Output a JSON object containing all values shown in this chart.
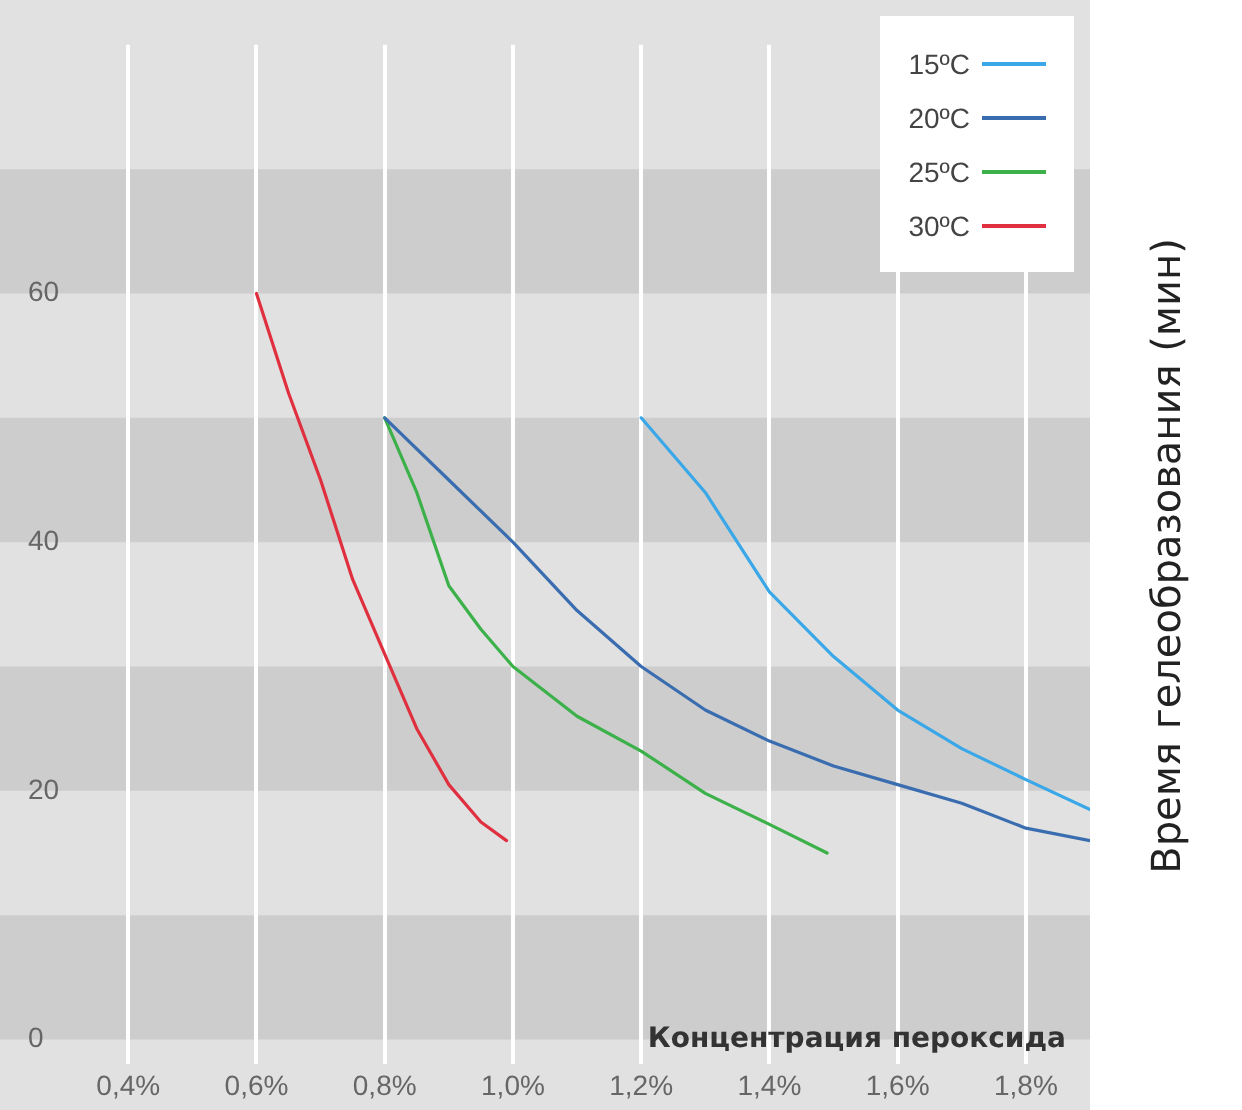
{
  "chart_data": {
    "type": "line",
    "xlabel": "Концентрация пероксида",
    "ylabel": "Время гелеобразования (мин)",
    "xlim": [
      0.2,
      1.9
    ],
    "ylim": [
      -2,
      80
    ],
    "xticks": [
      {
        "value": 0.4,
        "label": "0,4%"
      },
      {
        "value": 0.6,
        "label": "0,6%"
      },
      {
        "value": 0.8,
        "label": "0,8%"
      },
      {
        "value": 1.0,
        "label": "1,0%"
      },
      {
        "value": 1.2,
        "label": "1,2%"
      },
      {
        "value": 1.4,
        "label": "1,4%"
      },
      {
        "value": 1.6,
        "label": "1,6%"
      },
      {
        "value": 1.8,
        "label": "1,8%"
      }
    ],
    "yticks": [
      0,
      20,
      40,
      60
    ],
    "bands": [
      {
        "axis": "y",
        "from": 0,
        "to": 10,
        "color": "#cdcdcd"
      },
      {
        "axis": "y",
        "from": 20,
        "to": 30,
        "color": "#cdcdcd"
      },
      {
        "axis": "y",
        "from": 40,
        "to": 50,
        "color": "#cdcdcd"
      },
      {
        "axis": "y",
        "from": 60,
        "to": 70,
        "color": "#cdcdcd"
      }
    ],
    "grid": "x",
    "legend": "top right",
    "marker": "none",
    "line_style": "solid",
    "series": [
      {
        "name": "15ºC",
        "color": "#3aa8e8",
        "x": [
          1.2,
          1.3,
          1.4,
          1.5,
          1.6,
          1.7,
          1.8,
          1.9
        ],
        "values": [
          50,
          44,
          36,
          30.8,
          26.5,
          23.4,
          20.9,
          18.5
        ]
      },
      {
        "name": "20ºC",
        "color": "#3a6db0",
        "x": [
          0.8,
          0.9,
          1.0,
          1.1,
          1.2,
          1.3,
          1.4,
          1.5,
          1.6,
          1.7,
          1.8,
          1.9
        ],
        "values": [
          50,
          45,
          40,
          34.5,
          30,
          26.5,
          24,
          22,
          20.5,
          19,
          17,
          16
        ]
      },
      {
        "name": "25ºC",
        "color": "#3cb14a",
        "x": [
          0.8,
          0.85,
          0.9,
          0.95,
          1.0,
          1.1,
          1.2,
          1.3,
          1.4,
          1.49
        ],
        "values": [
          50,
          44,
          36.5,
          33,
          30,
          26,
          23.2,
          19.8,
          17.3,
          15
        ]
      },
      {
        "name": "30ºC",
        "color": "#e0303f",
        "x": [
          0.6,
          0.65,
          0.7,
          0.75,
          0.8,
          0.85,
          0.9,
          0.95,
          0.99
        ],
        "values": [
          60,
          52,
          45,
          37,
          31,
          25,
          20.5,
          17.5,
          16
        ]
      }
    ]
  }
}
